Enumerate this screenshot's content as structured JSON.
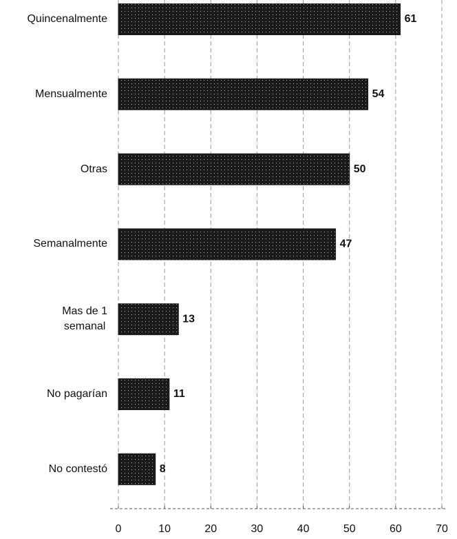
{
  "chart_data": {
    "type": "barh",
    "categories": [
      "Quincenalmente",
      "Mensualmente",
      "Otras",
      "Semanalmente",
      "Mas de 1\nsemanal",
      "No pagarían",
      "No contestó"
    ],
    "values": [
      61,
      54,
      50,
      47,
      13,
      11,
      8
    ],
    "color": "#1a1a1a",
    "xlim": [
      0,
      70
    ],
    "xticks": [
      0,
      10,
      20,
      30,
      40,
      50,
      60,
      70
    ],
    "grid": true
  }
}
